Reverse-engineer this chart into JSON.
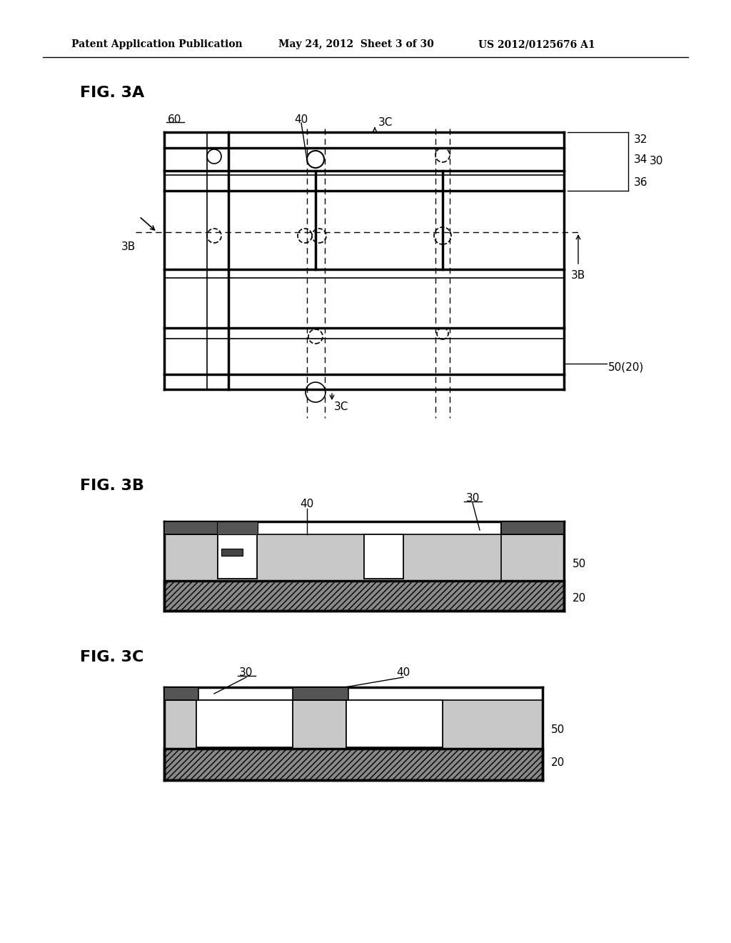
{
  "bg_color": "#ffffff",
  "header_text": "Patent Application Publication",
  "header_date": "May 24, 2012  Sheet 3 of 30",
  "header_patent": "US 2012/0125676 A1",
  "fig3a_label": "FIG. 3A",
  "fig3b_label": "FIG. 3B",
  "fig3c_label": "FIG. 3C"
}
